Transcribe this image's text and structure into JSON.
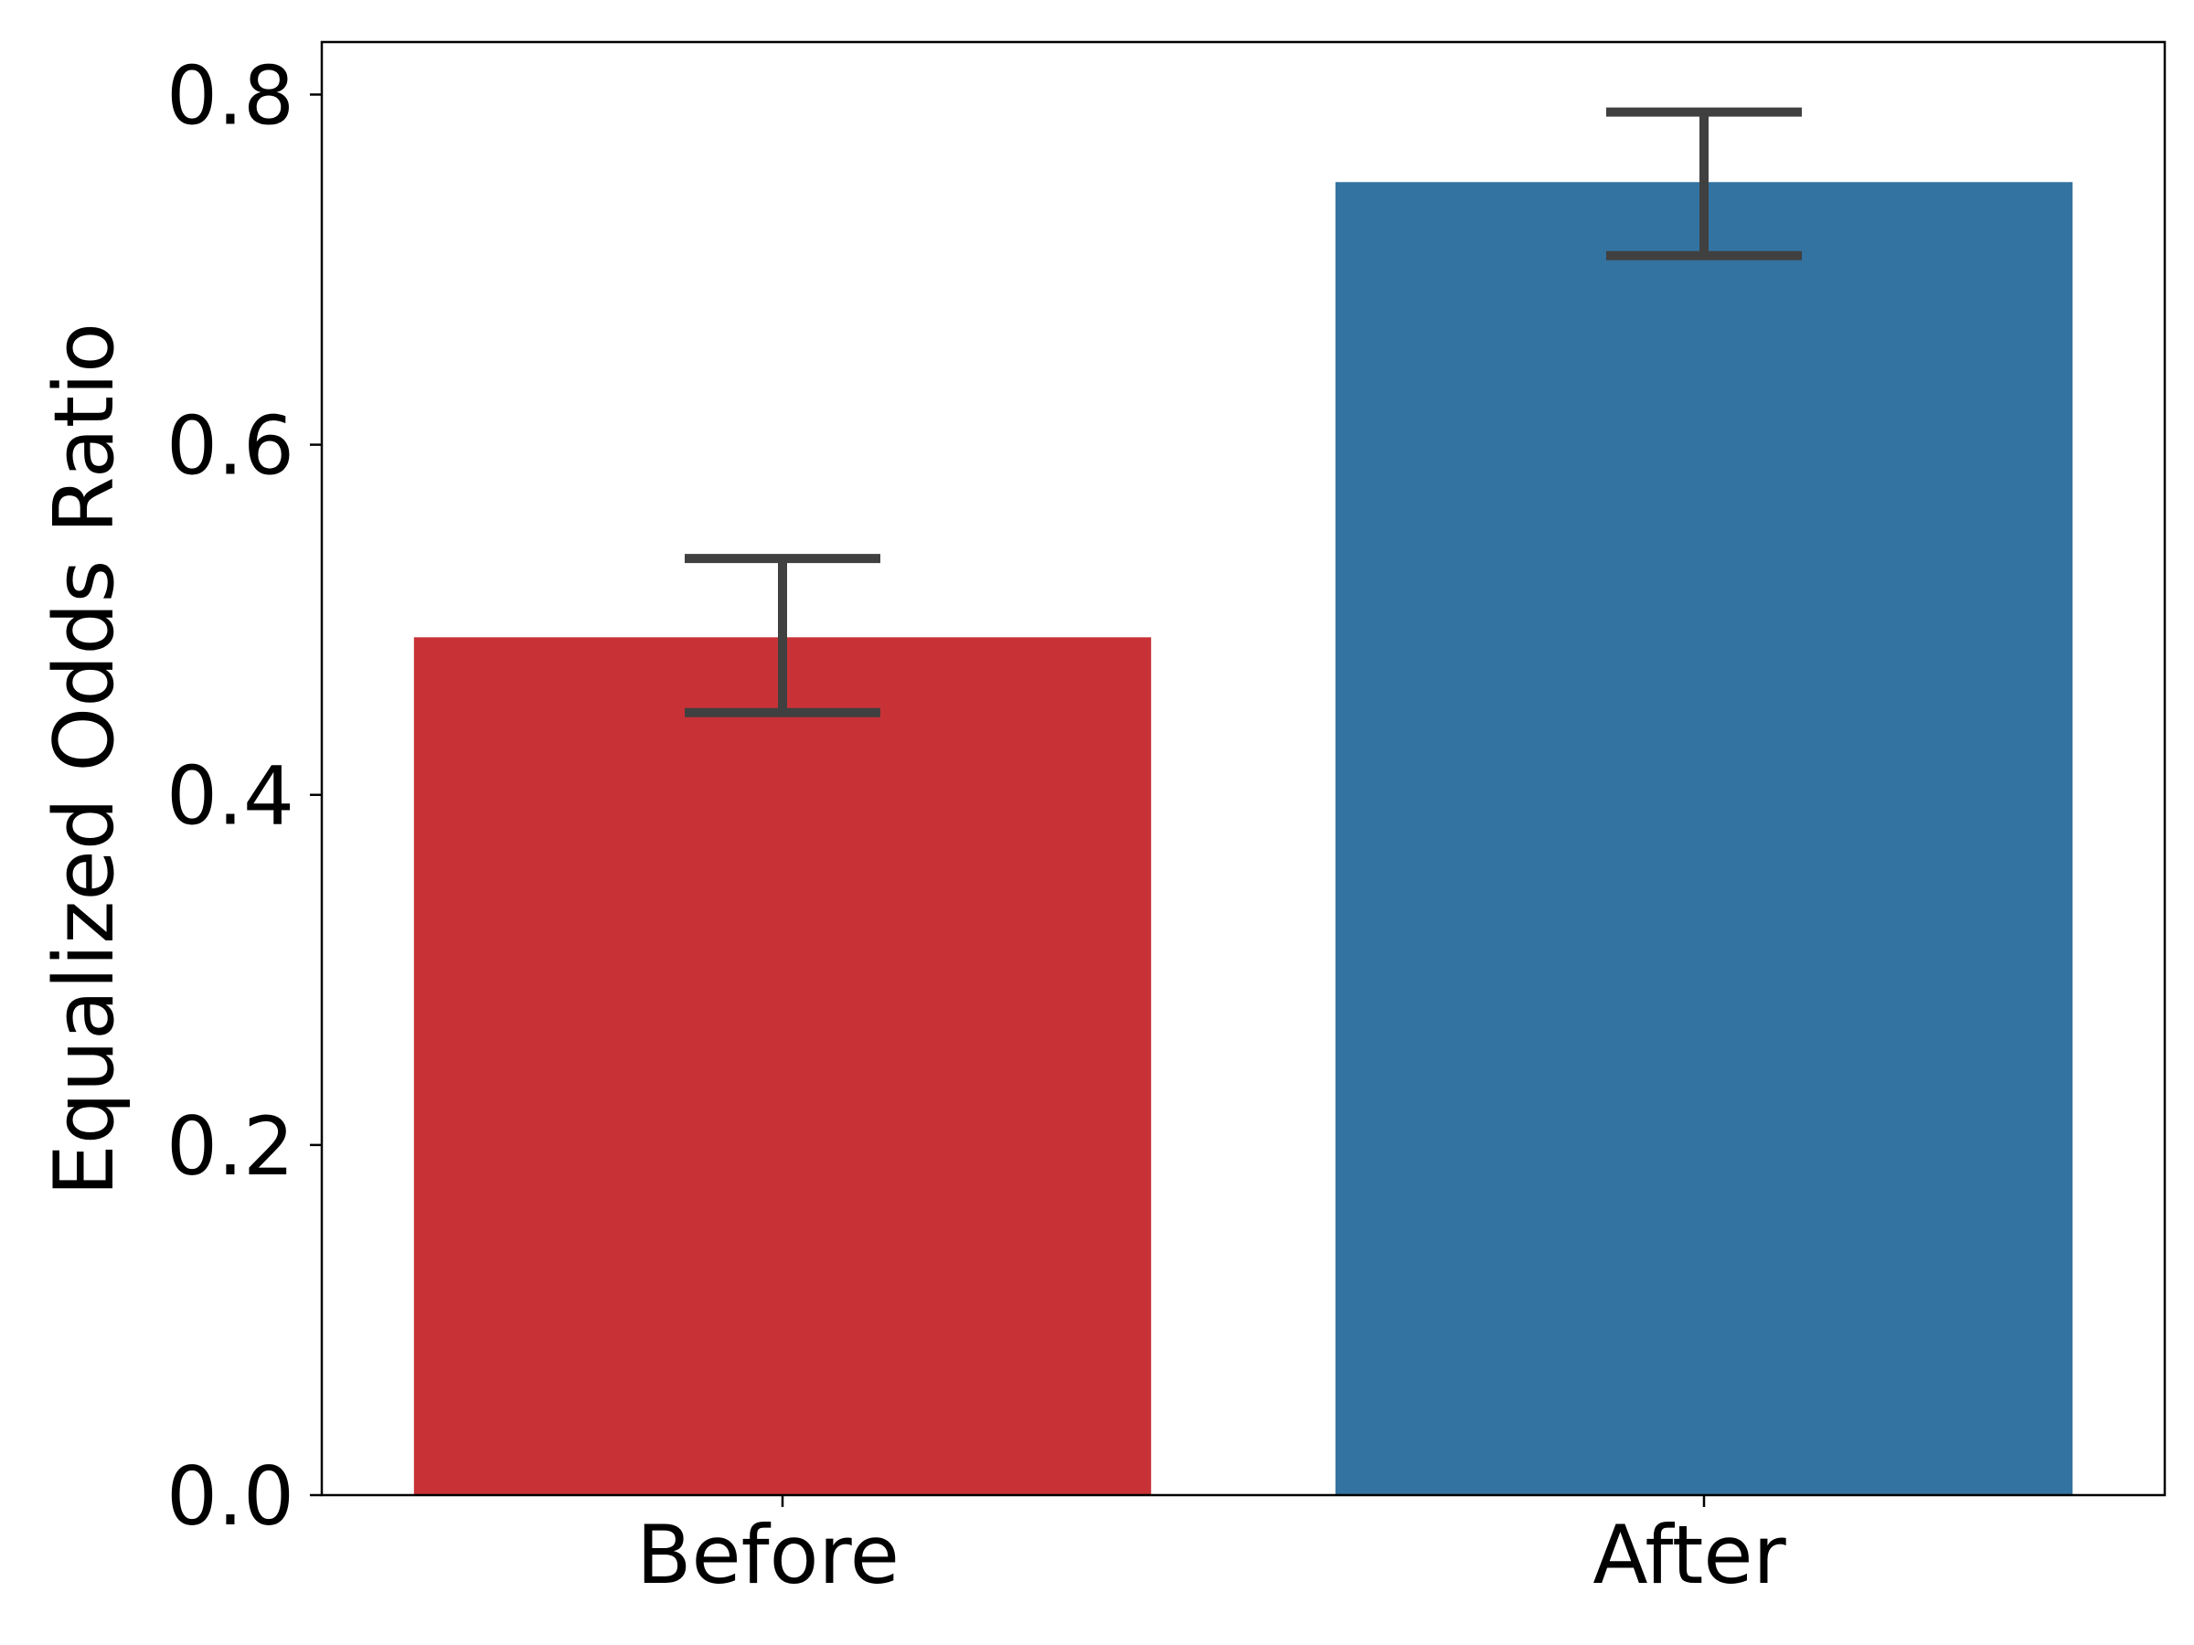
{
  "chart_data": {
    "type": "bar",
    "title": "",
    "xlabel": "",
    "ylabel": "Equalized Odds Ratio",
    "categories": [
      "Before",
      "After"
    ],
    "values": [
      0.49,
      0.75
    ],
    "error_low": [
      0.447,
      0.708
    ],
    "error_high": [
      0.535,
      0.79
    ],
    "bar_colors": [
      "#c83236",
      "#3373a1"
    ],
    "error_bar_color": "#404040",
    "ylim": [
      0.0,
      0.83
    ],
    "yticks": [
      0.0,
      0.2,
      0.4,
      0.6,
      0.8
    ],
    "ytick_labels": [
      "0.0",
      "0.2",
      "0.4",
      "0.6",
      "0.8"
    ],
    "grid": false,
    "legend": "none"
  }
}
